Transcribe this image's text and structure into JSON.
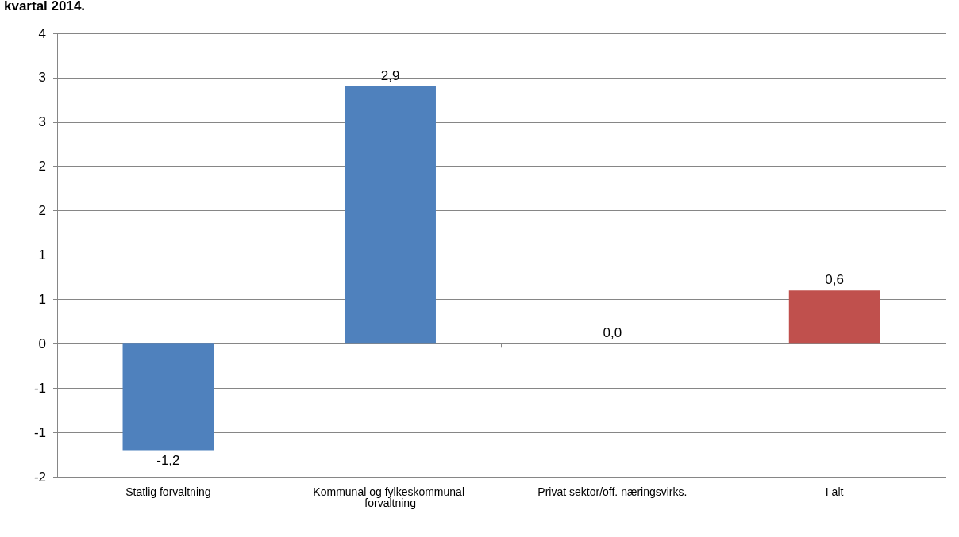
{
  "chart_data": {
    "type": "bar",
    "title": "kvartal 2014.",
    "categories": [
      "Statlig forvaltning",
      "Kommunal og fylkeskommunal forvaltning",
      "Privat sektor/off. næringsvirks.",
      "I alt"
    ],
    "values": [
      -1.2,
      2.9,
      0.0,
      0.6
    ],
    "colors": [
      "#4f81bd",
      "#4f81bd",
      "#4f81bd",
      "#c0504d"
    ],
    "value_labels": [
      "-1,2",
      "2,9",
      "0,0",
      "0,6"
    ],
    "ylim": [
      -1.5,
      3.5
    ],
    "yticks": [
      {
        "value": -1.5,
        "label": "-2"
      },
      {
        "value": -1,
        "label": "-1"
      },
      {
        "value": -0.5,
        "label": "-1"
      },
      {
        "value": 0,
        "label": "0"
      },
      {
        "value": 0.5,
        "label": "1"
      },
      {
        "value": 1,
        "label": "1"
      },
      {
        "value": 1.5,
        "label": "2"
      },
      {
        "value": 2,
        "label": "2"
      },
      {
        "value": 2.5,
        "label": "3"
      },
      {
        "value": 3,
        "label": "3"
      },
      {
        "value": 3.5,
        "label": "4"
      }
    ],
    "grid": "y"
  }
}
